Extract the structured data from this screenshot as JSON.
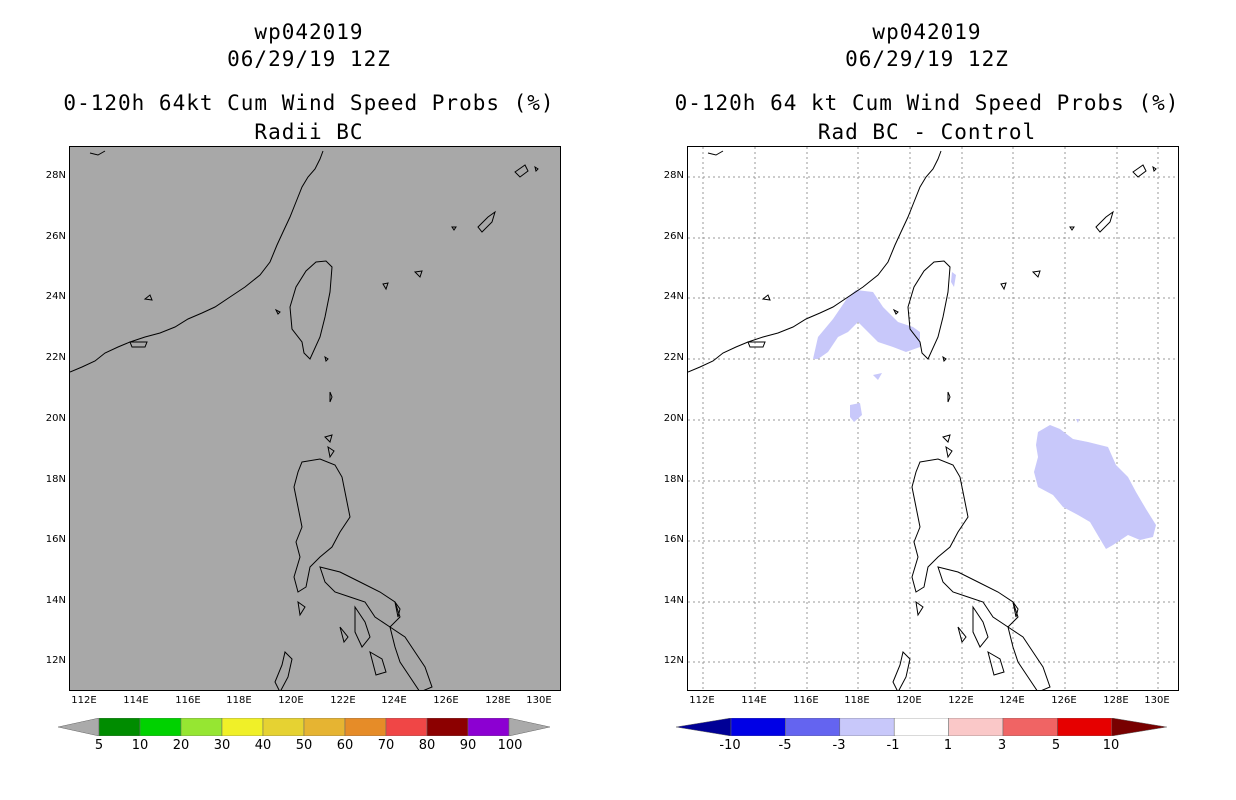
{
  "left_panel": {
    "title_line1": "wp042019",
    "title_line2": "06/29/19 12Z",
    "title_line3": "0-120h 64kt Cum Wind Speed Probs (%)",
    "title_line4": "Radii BC",
    "background_color": "#a8a8a8",
    "colorbar": {
      "labels": [
        "5",
        "10",
        "20",
        "30",
        "40",
        "50",
        "60",
        "70",
        "80",
        "90",
        "100"
      ],
      "colors": [
        "#008c00",
        "#00d200",
        "#96e632",
        "#f0f028",
        "#e6d232",
        "#e6b432",
        "#e68c28",
        "#f04646",
        "#8c0000",
        "#8c00d2"
      ],
      "end_color": "#aaaaaa"
    }
  },
  "right_panel": {
    "title_line1": "wp042019",
    "title_line2": "06/29/19 12Z",
    "title_line3": "0-120h 64 kt Cum Wind Speed Probs (%)",
    "title_line4": "Rad BC - Control",
    "background_color": "#ffffff",
    "shade_color": "#c8c8fa",
    "colorbar": {
      "labels": [
        "-10",
        "-5",
        "-3",
        "-1",
        "1",
        "3",
        "5",
        "10"
      ],
      "colors": [
        "#0000e6",
        "#6464f0",
        "#c8c8fa",
        "#ffffff",
        "#fac8c8",
        "#f06464",
        "#e60000"
      ],
      "left_end_color": "#000096",
      "right_end_color": "#780000"
    }
  },
  "axes": {
    "lat_labels": [
      "28N",
      "26N",
      "24N",
      "22N",
      "20N",
      "18N",
      "16N",
      "14N",
      "12N"
    ],
    "lon_labels": [
      "112E",
      "114E",
      "116E",
      "118E",
      "120E",
      "122E",
      "124E",
      "126E",
      "128E",
      "130E"
    ]
  }
}
